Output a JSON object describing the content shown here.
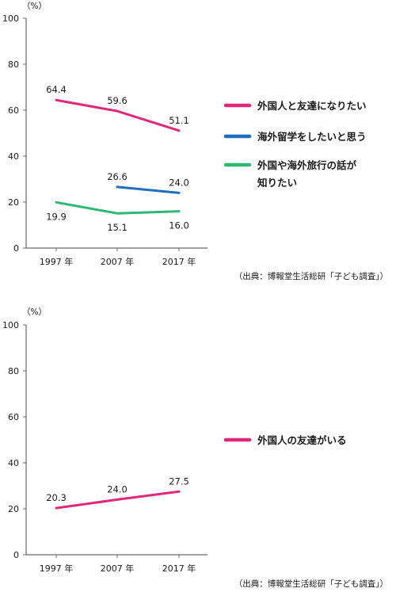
{
  "chart_data": [
    {
      "type": "line",
      "unit": "（%）",
      "categories": [
        "1997 年",
        "2007 年",
        "2017 年"
      ],
      "y_ticks": [
        "0",
        "20",
        "40",
        "60",
        "80",
        "100"
      ],
      "ylim": [
        0,
        100
      ],
      "grid": false,
      "legend_position": "right",
      "series": [
        {
          "name": "外国人と友達になりたい",
          "color": "#e0287a",
          "values": [
            64.4,
            59.6,
            51.1
          ],
          "labels": [
            "64.4",
            "59.6",
            "51.1"
          ]
        },
        {
          "name": "海外留学をしたいと思う",
          "color": "#1f6fb8",
          "values": [
            null,
            26.6,
            24.0
          ],
          "labels": [
            "",
            "26.6",
            "24.0"
          ]
        },
        {
          "name": "外国や海外旅行の話が知りたい",
          "name_lines": [
            "外国や海外旅行の話が",
            "知りたい"
          ],
          "color": "#2fb777",
          "values": [
            19.9,
            15.1,
            16.0
          ],
          "labels": [
            "19.9",
            "15.1",
            "16.0"
          ]
        }
      ],
      "source": "（出典：博報堂生活総研「子ども調査」）"
    },
    {
      "type": "line",
      "unit": "（%）",
      "categories": [
        "1997 年",
        "2007 年",
        "2017 年"
      ],
      "y_ticks": [
        "0",
        "20",
        "40",
        "60",
        "80",
        "100"
      ],
      "ylim": [
        0,
        100
      ],
      "grid": false,
      "legend_position": "right",
      "series": [
        {
          "name": "外国人の友達がいる",
          "name_lines": [
            "外国人の友達がいる"
          ],
          "color": "#e0287a",
          "values": [
            20.3,
            24.0,
            27.5
          ],
          "labels": [
            "20.3",
            "24.0",
            "27.5"
          ]
        }
      ],
      "source": "（出典：博報堂生活総研「子ども調査」）"
    }
  ]
}
